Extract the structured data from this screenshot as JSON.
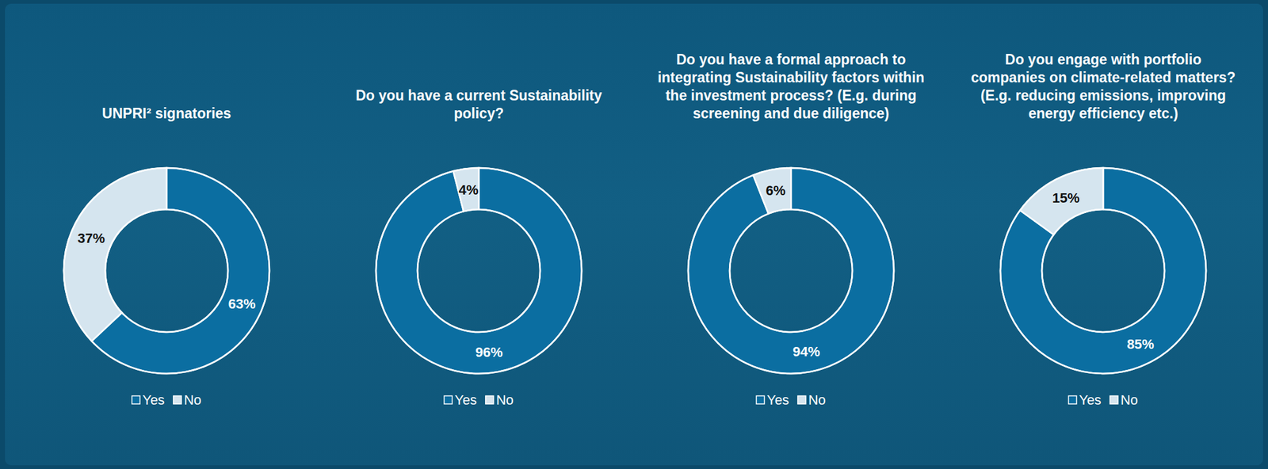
{
  "chart_data": [
    {
      "type": "donut",
      "title": "UNPRI² signatories",
      "categories": [
        "Yes",
        "No"
      ],
      "values": [
        63,
        37
      ],
      "value_labels": [
        "63%",
        "37%"
      ],
      "colors": [
        "#0b6ea1",
        "#d5e5ef"
      ],
      "data_labels": true,
      "legend": "bottom"
    },
    {
      "type": "donut",
      "title": "Do you have a current Sustainability policy?",
      "categories": [
        "Yes",
        "No"
      ],
      "values": [
        96,
        4
      ],
      "value_labels": [
        "96%",
        "4%"
      ],
      "colors": [
        "#0b6ea1",
        "#d5e5ef"
      ],
      "data_labels": true,
      "legend": "bottom"
    },
    {
      "type": "donut",
      "title": "Do you have a formal approach to integrating Sustainability factors within the investment process? (E.g. during screening and due diligence)",
      "categories": [
        "Yes",
        "No"
      ],
      "values": [
        94,
        6
      ],
      "value_labels": [
        "94%",
        "6%"
      ],
      "colors": [
        "#0b6ea1",
        "#d5e5ef"
      ],
      "data_labels": true,
      "legend": "bottom"
    },
    {
      "type": "donut",
      "title": "Do you engage with portfolio companies on climate-related matters? (E.g. reducing emissions, improving energy efficiency etc.)",
      "categories": [
        "Yes",
        "No"
      ],
      "values": [
        85,
        15
      ],
      "value_labels": [
        "85%",
        "15%"
      ],
      "colors": [
        "#0b6ea1",
        "#d5e5ef"
      ],
      "data_labels": true,
      "legend": "bottom"
    }
  ]
}
